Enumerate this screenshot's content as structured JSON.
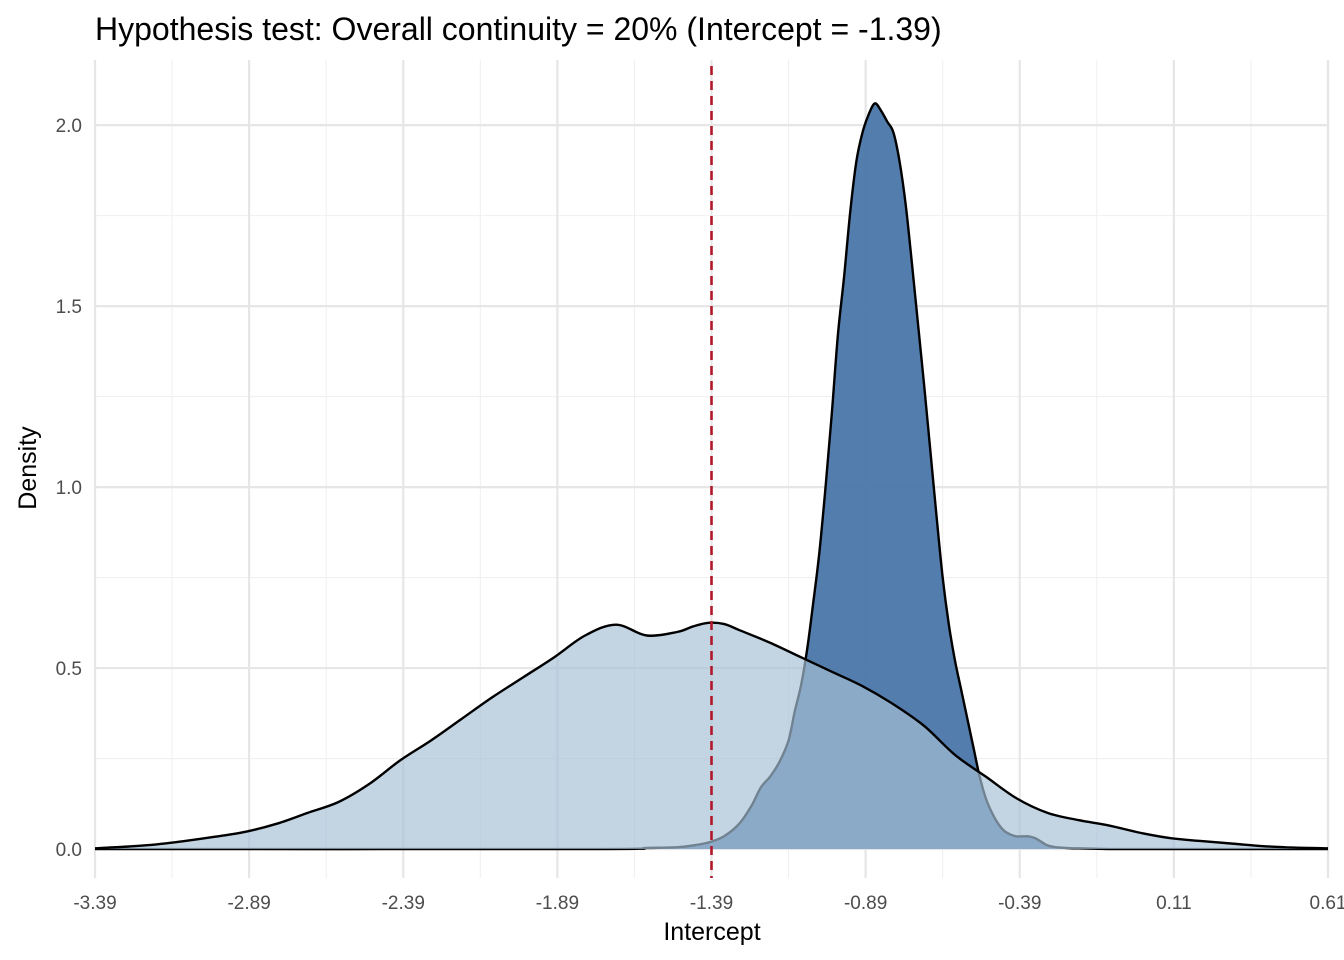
{
  "chart_data": {
    "type": "area",
    "title": "Hypothesis test: Overall continuity = 20% (Intercept = -1.39)",
    "xlabel": "Intercept",
    "ylabel": "Density",
    "xlim": [
      -3.39,
      0.61
    ],
    "ylim": [
      -0.08,
      2.18
    ],
    "x_ticks": [
      -3.39,
      -2.89,
      -2.39,
      -1.89,
      -1.39,
      -0.89,
      -0.39,
      0.11,
      0.61
    ],
    "x_tick_labels": [
      "-3.39",
      "-2.89",
      "-2.39",
      "-1.89",
      "-1.39",
      "-0.89",
      "-0.39",
      "0.11",
      "0.61"
    ],
    "y_ticks": [
      0.0,
      0.5,
      1.0,
      1.5,
      2.0
    ],
    "y_tick_labels": [
      "0.0",
      "0.5",
      "1.0",
      "1.5",
      "2.0"
    ],
    "grid": true,
    "reference_line": {
      "x": -1.39,
      "color": "#b2182b",
      "style": "dashed"
    },
    "series": [
      {
        "fill": "#4a76a8",
        "opacity": 0.95,
        "x": [
          -3.39,
          -1.8,
          -1.6,
          -1.5,
          -1.45,
          -1.4,
          -1.35,
          -1.3,
          -1.26,
          -1.23,
          -1.2,
          -1.17,
          -1.14,
          -1.12,
          -1.1,
          -1.08,
          -1.06,
          -1.04,
          -1.02,
          -1.0,
          -0.98,
          -0.96,
          -0.94,
          -0.92,
          -0.9,
          -0.88,
          -0.86,
          -0.84,
          -0.82,
          -0.8,
          -0.78,
          -0.76,
          -0.74,
          -0.72,
          -0.7,
          -0.68,
          -0.66,
          -0.64,
          -0.62,
          -0.6,
          -0.58,
          -0.56,
          -0.54,
          -0.52,
          -0.5,
          -0.48,
          -0.46,
          -0.44,
          -0.42,
          -0.4,
          -0.38,
          -0.36,
          -0.34,
          -0.32,
          -0.3,
          -0.28,
          -0.26,
          -0.24,
          -0.22,
          -0.2,
          -0.15,
          -0.1,
          0.0,
          0.61
        ],
        "y": [
          0.0,
          0.0,
          0.003,
          0.005,
          0.01,
          0.018,
          0.035,
          0.07,
          0.12,
          0.17,
          0.2,
          0.24,
          0.3,
          0.38,
          0.45,
          0.55,
          0.68,
          0.82,
          1.0,
          1.2,
          1.42,
          1.58,
          1.76,
          1.9,
          1.98,
          2.03,
          2.06,
          2.04,
          2.01,
          1.98,
          1.9,
          1.78,
          1.62,
          1.45,
          1.28,
          1.1,
          0.92,
          0.75,
          0.62,
          0.52,
          0.44,
          0.36,
          0.28,
          0.2,
          0.14,
          0.1,
          0.07,
          0.05,
          0.04,
          0.035,
          0.035,
          0.035,
          0.03,
          0.02,
          0.01,
          0.006,
          0.004,
          0.003,
          0.002,
          0.002,
          0.001,
          0.0,
          0.0,
          0.0
        ]
      },
      {
        "fill": "#a6bfd6",
        "opacity": 0.68,
        "x": [
          -3.39,
          -3.3,
          -3.2,
          -3.1,
          -3.0,
          -2.9,
          -2.8,
          -2.7,
          -2.6,
          -2.5,
          -2.4,
          -2.3,
          -2.2,
          -2.1,
          -2.0,
          -1.9,
          -1.8,
          -1.7,
          -1.6,
          -1.5,
          -1.45,
          -1.4,
          -1.35,
          -1.3,
          -1.2,
          -1.1,
          -1.0,
          -0.9,
          -0.8,
          -0.7,
          -0.6,
          -0.5,
          -0.4,
          -0.3,
          -0.2,
          -0.1,
          0.0,
          0.1,
          0.2,
          0.3,
          0.4,
          0.5,
          0.61
        ],
        "y": [
          0.002,
          0.006,
          0.012,
          0.022,
          0.034,
          0.048,
          0.07,
          0.1,
          0.13,
          0.18,
          0.245,
          0.3,
          0.36,
          0.42,
          0.475,
          0.53,
          0.59,
          0.62,
          0.59,
          0.6,
          0.615,
          0.625,
          0.622,
          0.605,
          0.57,
          0.53,
          0.49,
          0.45,
          0.4,
          0.34,
          0.26,
          0.2,
          0.14,
          0.1,
          0.08,
          0.065,
          0.045,
          0.03,
          0.022,
          0.015,
          0.008,
          0.004,
          0.002
        ]
      }
    ]
  }
}
